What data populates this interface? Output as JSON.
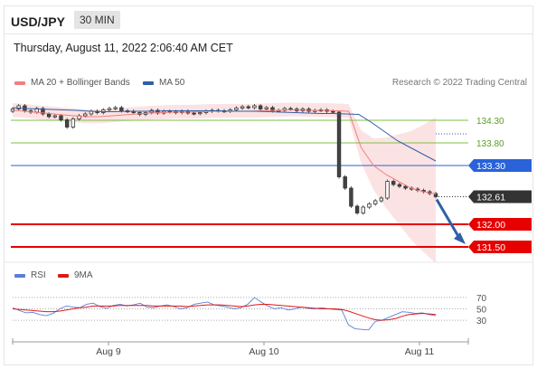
{
  "header": {
    "symbol": "USD/JPY",
    "timeframe": "30 MIN",
    "datetime": "Thursday, August 11, 2022 2:06:40 AM CET"
  },
  "legend": {
    "ma20_label": "MA 20 + Bollinger Bands",
    "ma20_color": "#f08080",
    "ma50_label": "MA 50",
    "ma50_color": "#2f5fa8",
    "credit": "Research © 2022 Trading Central"
  },
  "rsi_legend": {
    "rsi_label": "RSI",
    "rsi_color": "#5b7fd6",
    "ma_label": "9MA",
    "ma_color": "#e01818"
  },
  "chart_data": [
    {
      "type": "candlestick",
      "title": "USD/JPY",
      "timeframe": "30 MIN",
      "x_labels": [
        "Aug 9",
        "Aug 10",
        "Aug 11"
      ],
      "ylim": [
        131.2,
        135.0
      ],
      "close_series": [
        134.55,
        134.62,
        134.51,
        134.48,
        134.56,
        134.44,
        134.38,
        134.4,
        134.31,
        134.15,
        134.33,
        134.4,
        134.44,
        134.5,
        134.47,
        134.53,
        134.56,
        134.58,
        134.51,
        134.5,
        134.47,
        134.43,
        134.47,
        134.52,
        134.46,
        134.5,
        134.49,
        134.47,
        134.5,
        134.46,
        134.45,
        134.47,
        134.5,
        134.52,
        134.51,
        134.5,
        134.53,
        134.57,
        134.6,
        134.58,
        134.62,
        134.55,
        134.58,
        134.51,
        134.52,
        134.56,
        134.55,
        134.51,
        134.55,
        134.5,
        134.52,
        134.53,
        134.5,
        134.48,
        133.05,
        132.8,
        132.4,
        132.25,
        132.38,
        132.45,
        132.52,
        132.58,
        132.95,
        132.88,
        132.84,
        132.8,
        132.78,
        132.75,
        132.72,
        132.68,
        132.61
      ],
      "last_price": "132.61",
      "bands_cap_level": 134.9,
      "levels": [
        {
          "label": "134.30",
          "value": 134.3,
          "color": "#7dc243",
          "style": "support/resistance"
        },
        {
          "label": "133.80",
          "value": 133.8,
          "color": "#7dc243",
          "style": "support/resistance"
        },
        {
          "label": "133.30",
          "value": 133.3,
          "color": "#2962d9",
          "style": "pivot"
        },
        {
          "label": "132.00",
          "value": 132.0,
          "color": "#e60000",
          "style": "target"
        },
        {
          "label": "131.50",
          "value": 131.5,
          "color": "#e60000",
          "style": "target"
        }
      ],
      "ma20": [
        134.52,
        134.5,
        134.47,
        134.45,
        134.42,
        134.4,
        134.38,
        134.38,
        134.4,
        134.42,
        134.44,
        134.46,
        134.47,
        134.48,
        134.48,
        134.49,
        134.5,
        134.5,
        134.5,
        134.5,
        134.51,
        134.52,
        134.53,
        134.53,
        134.52,
        134.52,
        134.51,
        134.5,
        133.7,
        133.3,
        133.1,
        132.95,
        132.8,
        132.72,
        132.67
      ],
      "ma50": [
        134.58,
        134.56,
        134.55,
        134.54,
        134.53,
        134.52,
        134.5,
        134.49,
        134.49,
        134.5,
        134.5,
        134.5,
        134.51,
        134.51,
        134.51,
        134.51,
        134.51,
        134.5,
        134.5,
        134.5,
        134.49,
        134.48,
        134.47,
        134.46,
        134.45,
        134.45,
        134.44,
        134.43,
        134.25,
        134.05,
        133.85,
        133.7,
        133.55,
        133.4
      ]
    },
    {
      "type": "line",
      "title": "RSI",
      "series": [
        {
          "name": "RSI",
          "values": [
            52,
            47,
            43,
            44,
            40,
            38,
            42,
            50,
            55,
            53,
            52,
            58,
            60,
            54,
            51,
            56,
            58,
            55,
            57,
            60,
            53,
            52,
            55,
            57,
            54,
            50,
            52,
            58,
            60,
            62,
            57,
            55,
            53,
            50,
            52,
            58,
            70,
            62,
            55,
            50,
            52,
            48,
            50,
            53,
            51,
            50,
            52,
            50,
            49,
            48,
            22,
            15,
            14,
            13,
            28,
            30,
            35,
            40,
            45,
            44,
            42,
            43,
            40,
            38
          ]
        },
        {
          "name": "9MA",
          "values": [
            50,
            49,
            48,
            47,
            46,
            45,
            45,
            46,
            48,
            50,
            52,
            53,
            55,
            55,
            55,
            55,
            56,
            56,
            56,
            56,
            56,
            55,
            55,
            55,
            55,
            55,
            54,
            55,
            56,
            57,
            57,
            57,
            56,
            55,
            54,
            55,
            57,
            58,
            58,
            57,
            56,
            55,
            54,
            53,
            52,
            51,
            50,
            50,
            50,
            49,
            46,
            42,
            38,
            34,
            31,
            30,
            31,
            33,
            37,
            40,
            41,
            42,
            41,
            40
          ]
        }
      ],
      "levels": [
        "70",
        "50",
        "30"
      ],
      "ylim": [
        0,
        100
      ]
    }
  ]
}
